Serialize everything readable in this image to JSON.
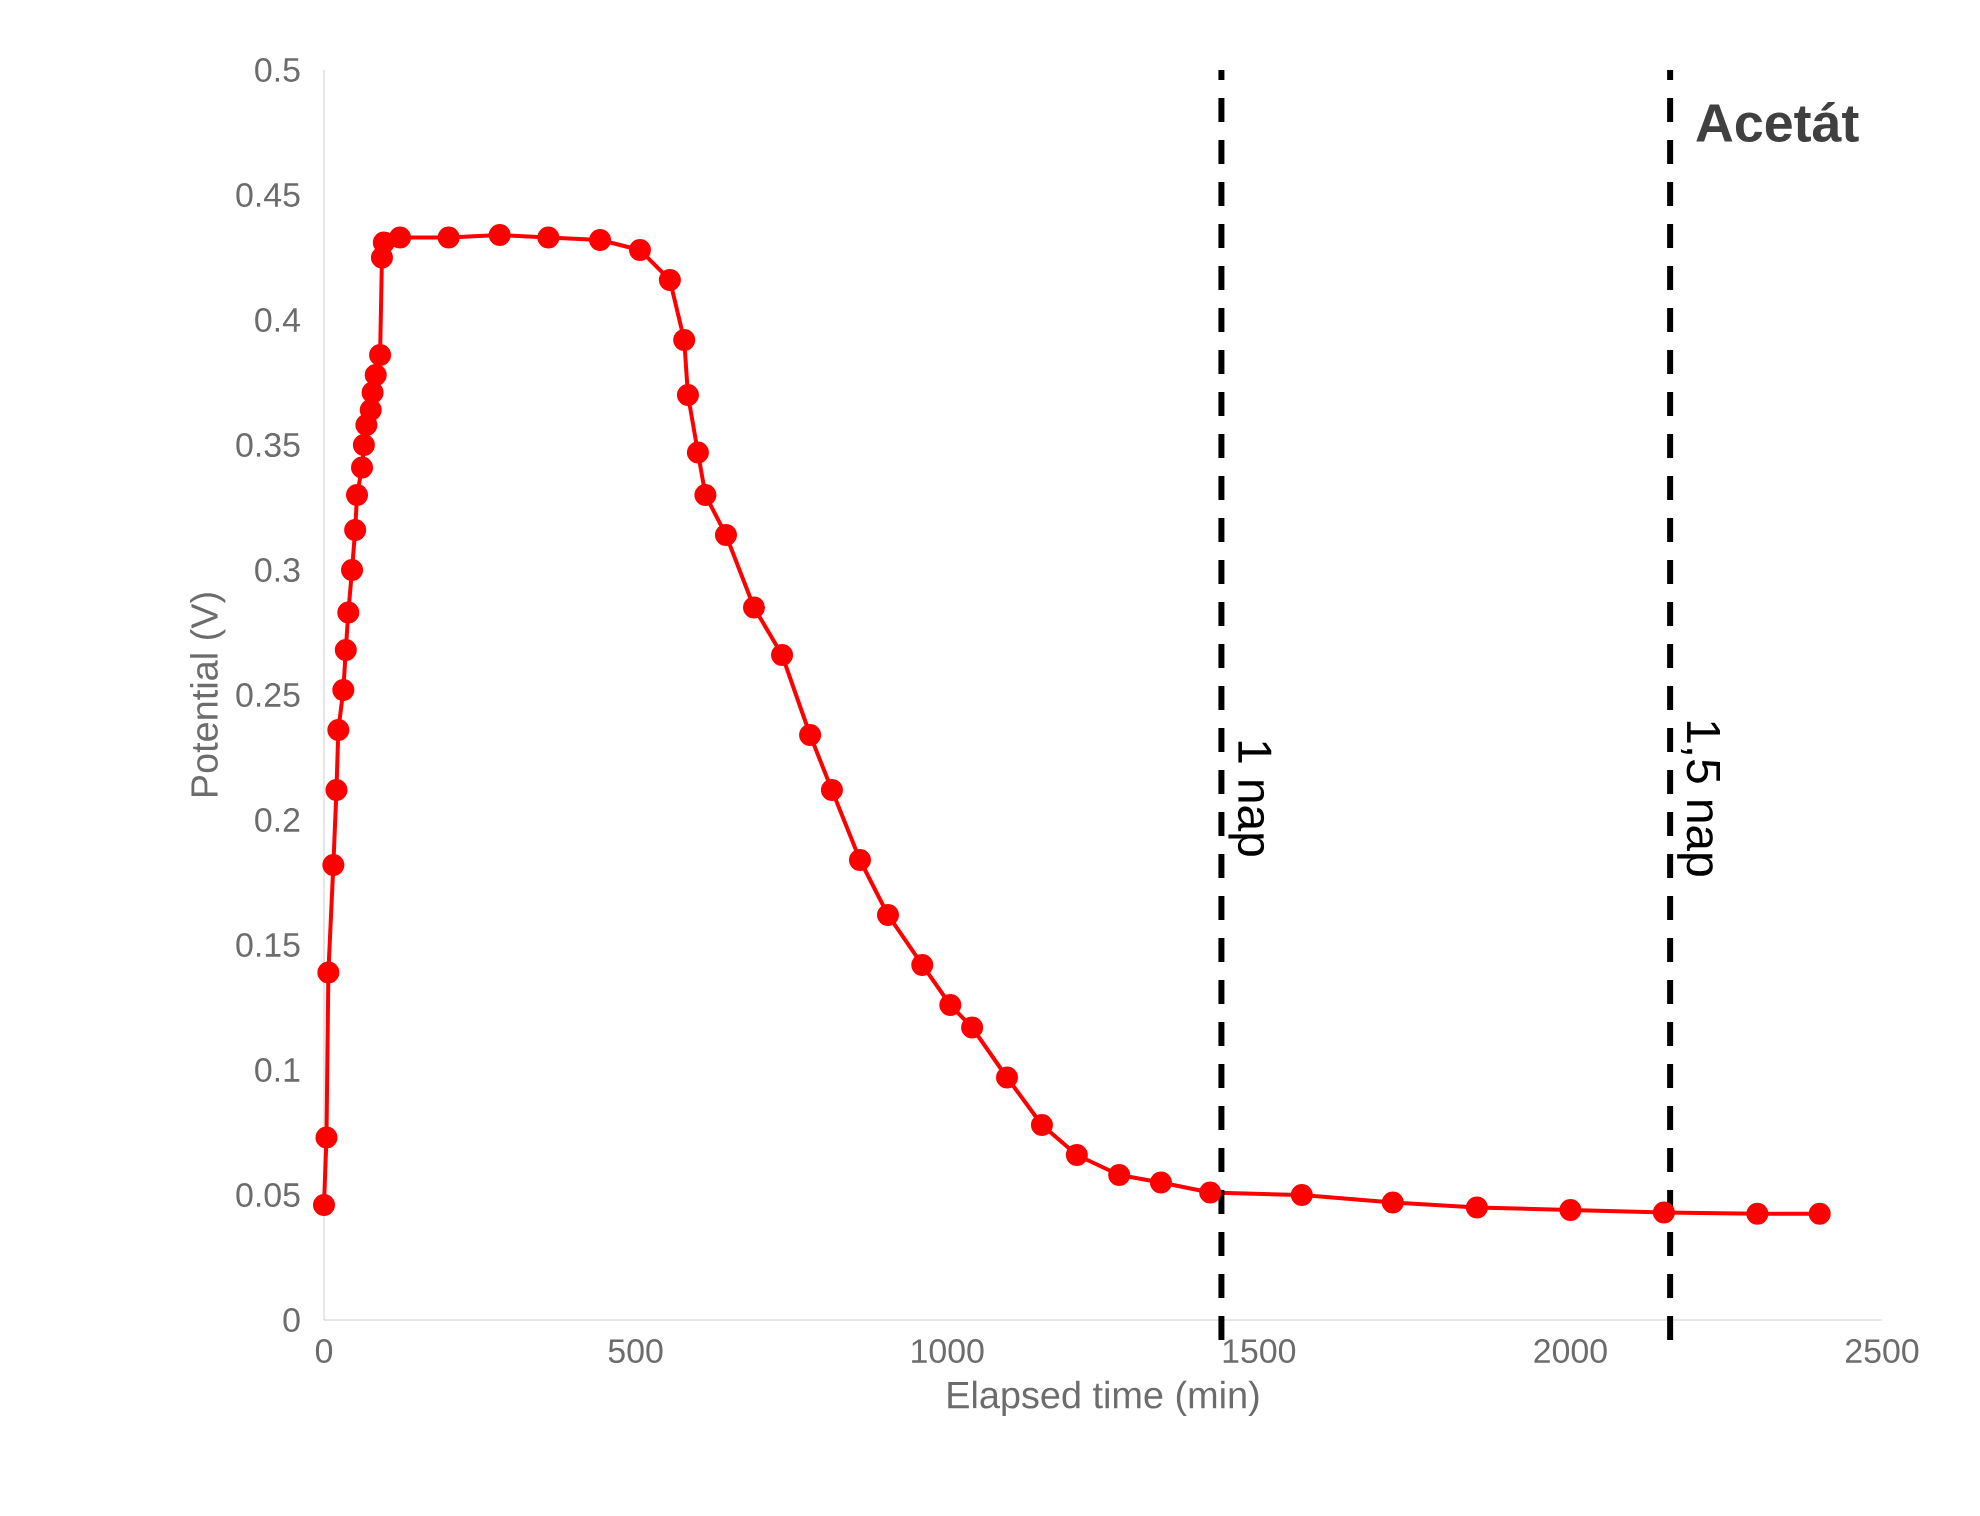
{
  "chart_data": {
    "type": "line",
    "title": "Acetát",
    "xlabel": "Elapsed time (min)",
    "ylabel": "Potential (V)",
    "x": [
      0,
      4,
      7,
      15,
      20,
      23,
      31,
      35,
      39,
      45,
      50,
      53,
      61,
      64,
      68,
      75,
      78,
      83,
      90,
      93,
      96,
      122,
      200,
      282,
      360,
      443,
      507,
      555,
      578,
      584,
      600,
      612,
      645,
      690,
      735,
      780,
      815,
      860,
      905,
      960,
      1005,
      1040,
      1096,
      1152,
      1208,
      1276,
      1343,
      1422,
      1569,
      1715,
      1850,
      2000,
      2150,
      2300,
      2400
    ],
    "series": [
      {
        "color": "#ff0000",
        "values": [
          0.046,
          0.073,
          0.139,
          0.182,
          0.212,
          0.236,
          0.252,
          0.268,
          0.283,
          0.3,
          0.316,
          0.33,
          0.341,
          0.35,
          0.358,
          0.364,
          0.371,
          0.378,
          0.386,
          0.425,
          0.431,
          0.433,
          0.433,
          0.434,
          0.433,
          0.432,
          0.428,
          0.416,
          0.392,
          0.37,
          0.347,
          0.33,
          0.314,
          0.285,
          0.266,
          0.234,
          0.212,
          0.184,
          0.162,
          0.142,
          0.126,
          0.117,
          0.097,
          0.078,
          0.066,
          0.058,
          0.055,
          0.051,
          0.05,
          0.047,
          0.045,
          0.044,
          0.043,
          0.0425,
          0.0425
        ]
      }
    ],
    "xlim": [
      0,
      2500
    ],
    "xticks": [
      0,
      500,
      1000,
      1500,
      2000,
      2500
    ],
    "ylim": [
      0,
      0.5
    ],
    "yticks": [
      0,
      0.05,
      0.1,
      0.15,
      0.2,
      0.25,
      0.3,
      0.35,
      0.4,
      0.45,
      0.5
    ],
    "ref_lines": [
      {
        "axis": "x",
        "value": 1440,
        "label": "1 nap",
        "color": "#000000",
        "line_style": "dashed"
      },
      {
        "axis": "x",
        "value": 2160,
        "label": "1,5 nap",
        "color": "#000000",
        "line_style": "dashed"
      }
    ],
    "marker": "circle",
    "line_style": "solid"
  }
}
